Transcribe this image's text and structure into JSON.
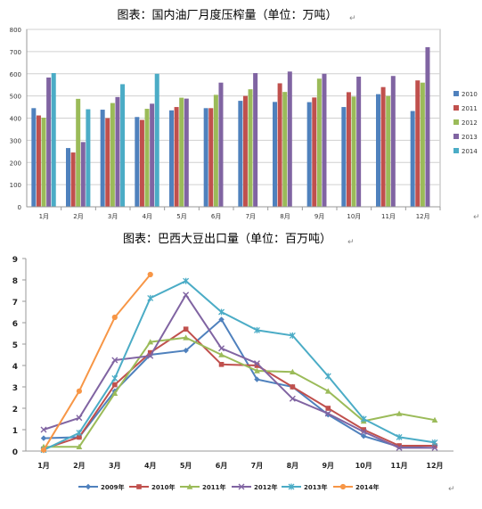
{
  "charts": [
    {
      "title": "图表：国内油厂月度压榨量（单位：万吨）",
      "enter_mark": "↵",
      "chart_data": {
        "type": "bar",
        "categories": [
          "1月",
          "2月",
          "3月",
          "4月",
          "5月",
          "6月",
          "7月",
          "8月",
          "9月",
          "10月",
          "11月",
          "12月"
        ],
        "ylim": [
          0,
          800
        ],
        "yticks": [
          0,
          100,
          200,
          300,
          400,
          500,
          600,
          700,
          800
        ],
        "grid": "horizontal",
        "legend": "right",
        "series": [
          {
            "name": "2010",
            "color": "#4F81BD",
            "values": [
              445,
              265,
              438,
              405,
              435,
              445,
              478,
              473,
              472,
              450,
              508,
              432
            ]
          },
          {
            "name": "2011",
            "color": "#C0504D",
            "values": [
              412,
              245,
              400,
              392,
              450,
              445,
              500,
              557,
              493,
              517,
              540,
              570
            ]
          },
          {
            "name": "2012",
            "color": "#9BBB59",
            "values": [
              402,
              487,
              468,
              442,
              492,
              505,
              530,
              518,
              578,
              497,
              500,
              560
            ]
          },
          {
            "name": "2013",
            "color": "#8064A2",
            "values": [
              583,
              292,
              495,
              465,
              488,
              560,
              603,
              610,
              600,
              587,
              590,
              720
            ]
          },
          {
            "name": "2014",
            "color": "#4BACC6",
            "values": [
              603,
              440,
              553,
              600,
              null,
              null,
              null,
              null,
              null,
              null,
              null,
              null
            ]
          }
        ]
      }
    },
    {
      "title": "图表：巴西大豆出口量（单位：百万吨）",
      "enter_mark": "↵",
      "chart_data": {
        "type": "line",
        "categories": [
          "1月",
          "2月",
          "3月",
          "4月",
          "5月",
          "6月",
          "7月",
          "8月",
          "9月",
          "10月",
          "11月",
          "12月"
        ],
        "ylim": [
          0,
          9
        ],
        "yticks": [
          0,
          1,
          2,
          3,
          4,
          5,
          6,
          7,
          8,
          9
        ],
        "grid": "none",
        "legend": "bottom",
        "series": [
          {
            "name": "2009年",
            "color": "#4F81BD",
            "marker": "diamond",
            "values": [
              0.6,
              0.65,
              2.8,
              4.5,
              4.7,
              6.15,
              3.35,
              3.0,
              1.7,
              0.7,
              0.2,
              0.25
            ]
          },
          {
            "name": "2010年",
            "color": "#C0504D",
            "marker": "square",
            "values": [
              0.1,
              0.65,
              3.1,
              4.6,
              5.7,
              4.05,
              4.0,
              3.0,
              2.0,
              1.0,
              0.25,
              0.25
            ]
          },
          {
            "name": "2011年",
            "color": "#9BBB59",
            "marker": "triangle",
            "values": [
              0.2,
              0.2,
              2.7,
              5.1,
              5.3,
              4.5,
              3.75,
              3.7,
              2.8,
              1.4,
              1.75,
              1.45
            ]
          },
          {
            "name": "2012年",
            "color": "#8064A2",
            "marker": "x",
            "values": [
              1.0,
              1.55,
              4.25,
              4.45,
              7.3,
              4.8,
              4.1,
              2.45,
              1.75,
              0.9,
              0.15,
              0.15
            ]
          },
          {
            "name": "2013年",
            "color": "#4BACC6",
            "marker": "star",
            "values": [
              0.05,
              0.85,
              3.4,
              7.15,
              7.95,
              6.5,
              5.65,
              5.4,
              3.5,
              1.5,
              0.65,
              0.4
            ]
          },
          {
            "name": "2014年",
            "color": "#F79646",
            "marker": "circle",
            "values": [
              0.05,
              2.8,
              6.25,
              8.25,
              null,
              null,
              null,
              null,
              null,
              null,
              null,
              null
            ]
          }
        ]
      }
    }
  ]
}
